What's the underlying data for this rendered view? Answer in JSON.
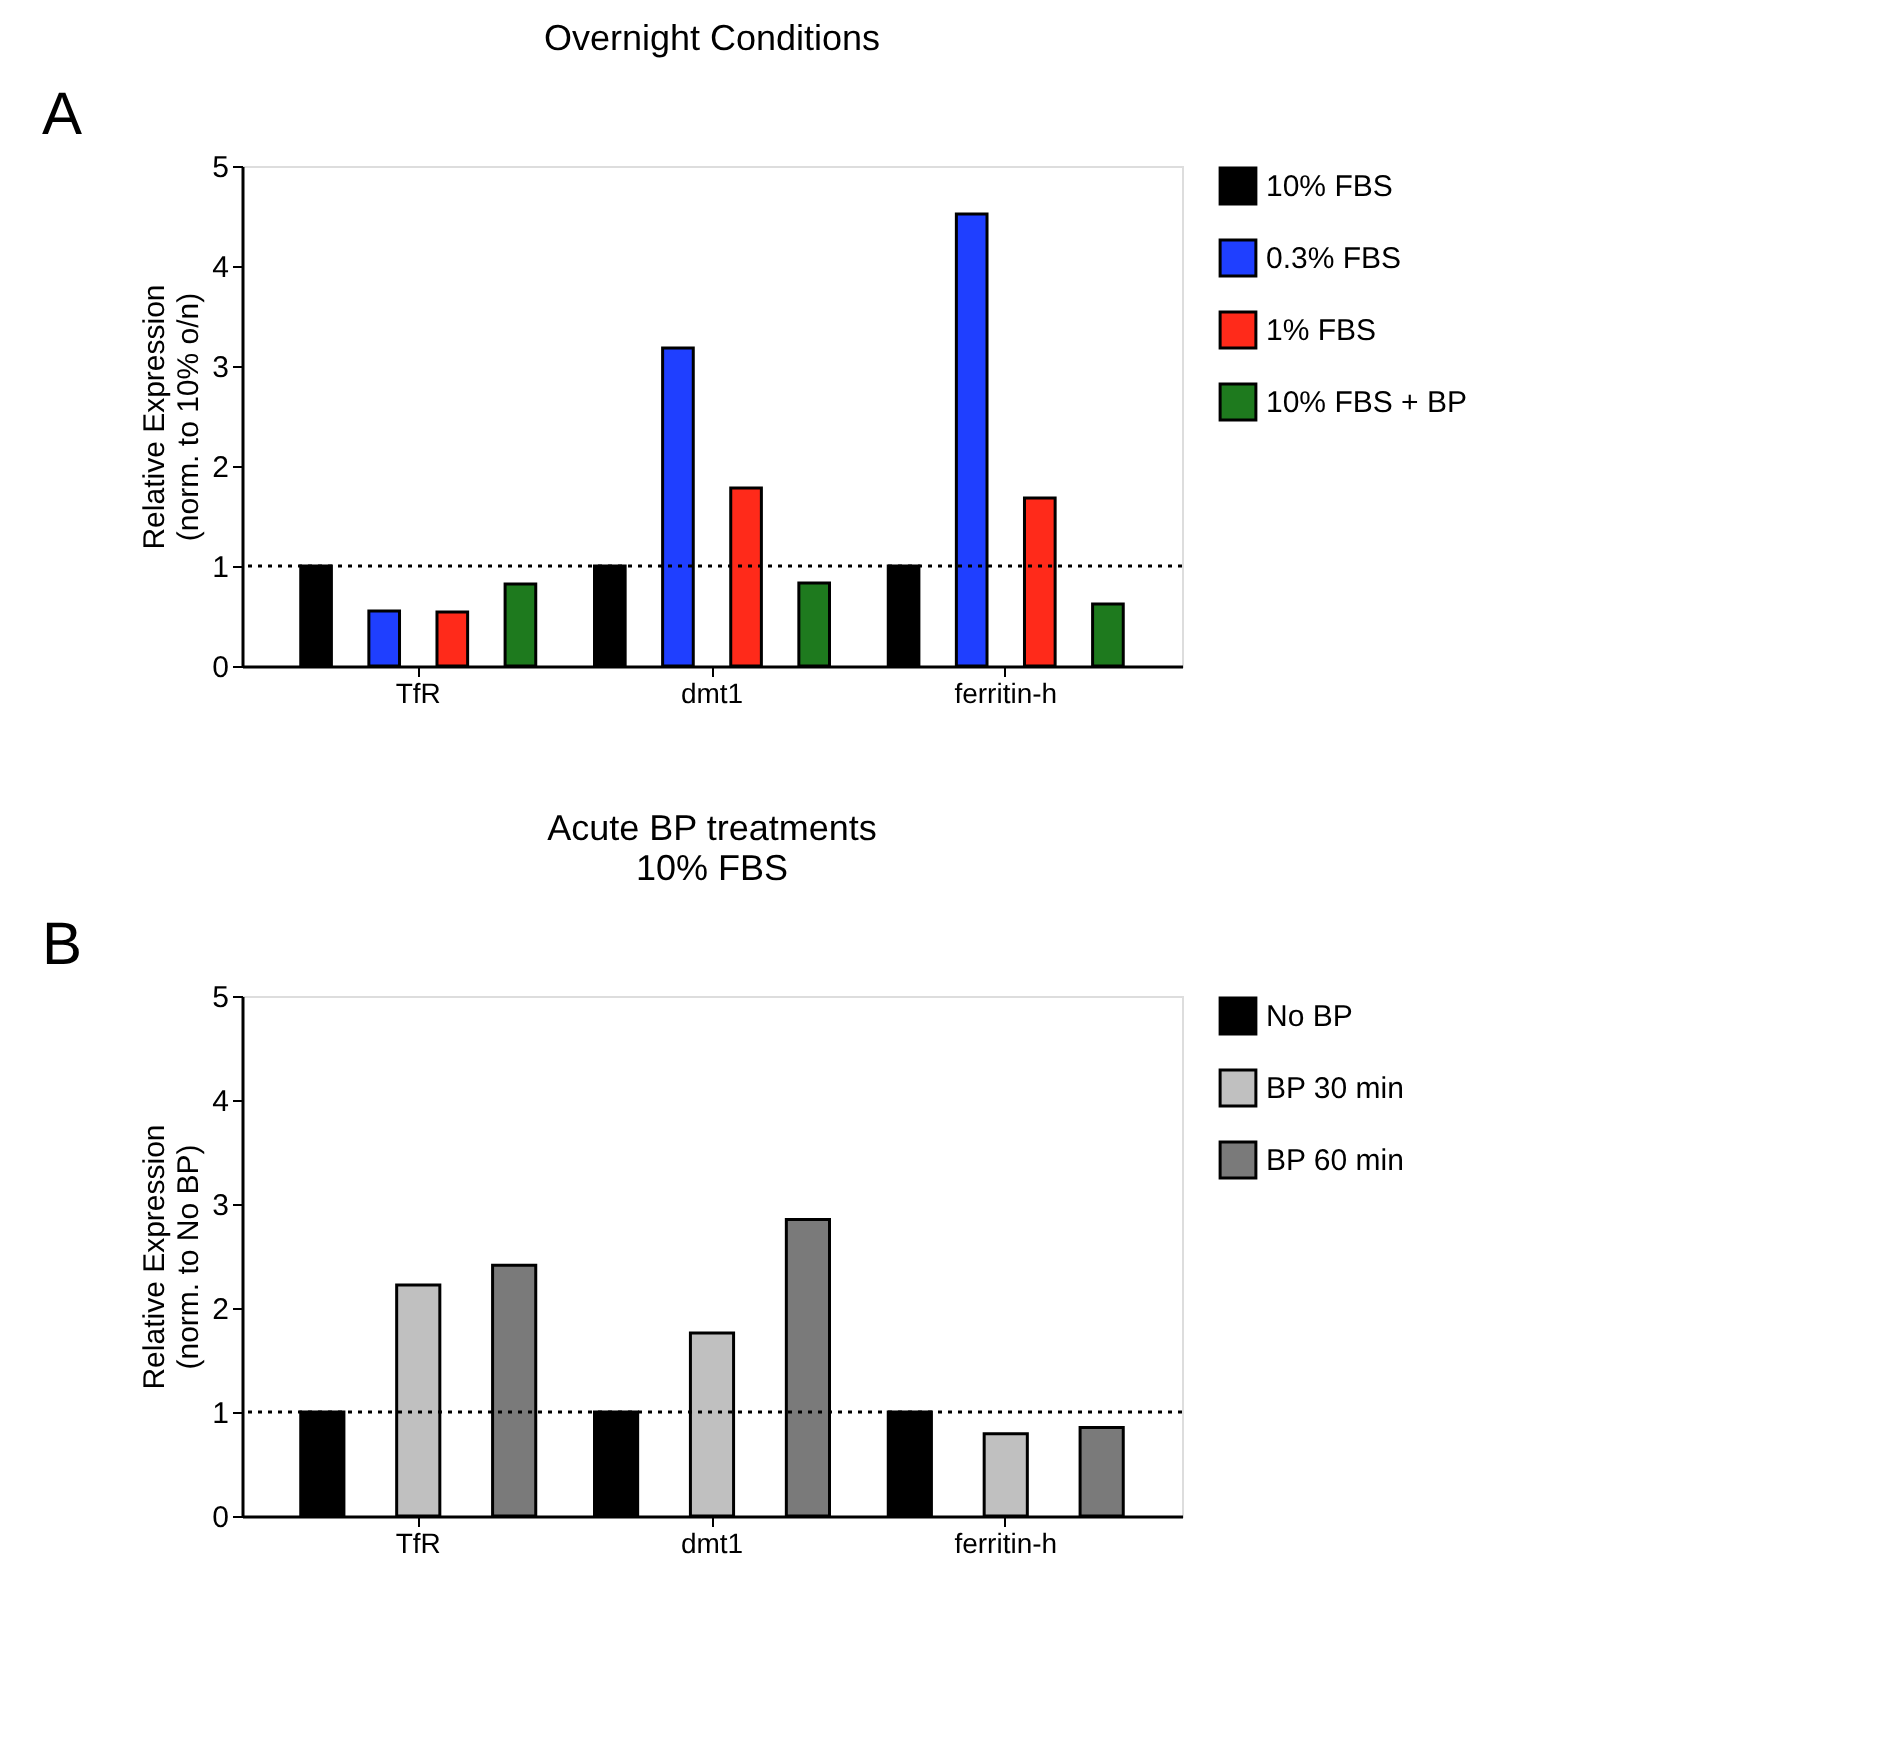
{
  "chart_data": [
    {
      "type": "bar",
      "title": "Overnight Conditions",
      "ylabel": "Relative Expression\n(norm. to 10% o/n)",
      "annotations": [
        "A"
      ],
      "categories": [
        "TfR",
        "dmt1",
        "ferritin-h"
      ],
      "series": [
        {
          "name": "10% FBS",
          "color": "#000000",
          "values": [
            1.0,
            1.0,
            1.0
          ]
        },
        {
          "name": "0.3% FBS",
          "color": "#1f3fff",
          "values": [
            0.55,
            3.18,
            4.52
          ]
        },
        {
          "name": "1% FBS",
          "color": "#ff2a1a",
          "values": [
            0.54,
            1.78,
            1.68
          ]
        },
        {
          "name": "10% FBS + BP",
          "color": "#1e7a1e",
          "values": [
            0.82,
            0.83,
            0.62
          ]
        }
      ],
      "ylim": [
        0,
        5
      ],
      "yticks": [
        0,
        1,
        2,
        3,
        4,
        5
      ],
      "grid": false,
      "legend": "right",
      "ref_lines": [
        {
          "axis": "y",
          "value": 1,
          "line_style": "dotted"
        }
      ]
    },
    {
      "type": "bar",
      "title": "Acute BP treatments\n10% FBS",
      "ylabel": "Relative Expression\n(norm. to No BP)",
      "annotations": [
        "B"
      ],
      "categories": [
        "TfR",
        "dmt1",
        "ferritin-h"
      ],
      "series": [
        {
          "name": "No BP",
          "color": "#000000",
          "values": [
            1.0,
            1.0,
            1.0
          ]
        },
        {
          "name": "BP 30 min",
          "color": "#c0c0c0",
          "values": [
            2.22,
            1.76,
            0.79
          ]
        },
        {
          "name": "BP 60 min",
          "color": "#7a7a7a",
          "values": [
            2.41,
            2.85,
            0.85
          ]
        }
      ],
      "ylim": [
        0,
        5
      ],
      "yticks": [
        0,
        1,
        2,
        3,
        4,
        5
      ],
      "grid": false,
      "legend": "right",
      "ref_lines": [
        {
          "axis": "y",
          "value": 1,
          "line_style": "dotted"
        }
      ]
    }
  ]
}
